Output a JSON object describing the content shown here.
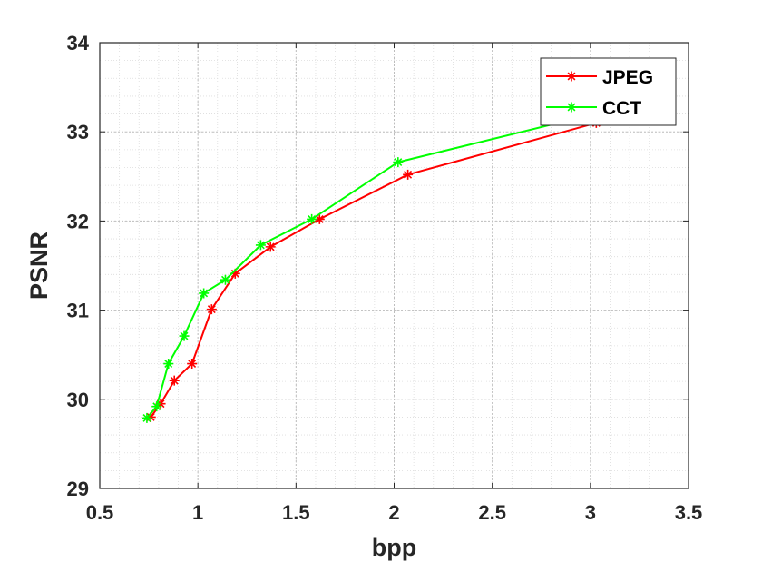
{
  "chart_data": {
    "type": "line",
    "title": "",
    "xlabel": "bpp",
    "ylabel": "PSNR",
    "xlim": [
      0.5,
      3.5
    ],
    "ylim": [
      29,
      34
    ],
    "xticks": [
      "0.5",
      "1",
      "1.5",
      "2",
      "2.5",
      "3",
      "3.5"
    ],
    "yticks": [
      "29",
      "30",
      "31",
      "32",
      "33",
      "34"
    ],
    "grid": "major and minor, dotted",
    "legend_position": "top-right",
    "series": [
      {
        "name": "JPEG",
        "color": "#ff0000",
        "marker": "asterisk",
        "x": [
          0.76,
          0.81,
          0.88,
          0.97,
          1.07,
          1.19,
          1.37,
          1.62,
          2.07,
          3.03
        ],
        "y": [
          29.8,
          29.95,
          30.21,
          30.4,
          31.01,
          31.41,
          31.71,
          32.02,
          32.52,
          33.1
        ]
      },
      {
        "name": "CCT",
        "color": "#00ff00",
        "marker": "asterisk",
        "x": [
          0.74,
          0.79,
          0.85,
          0.93,
          1.03,
          1.14,
          1.32,
          1.58,
          2.02,
          3.06
        ],
        "y": [
          29.79,
          29.92,
          30.4,
          30.71,
          31.19,
          31.34,
          31.73,
          32.02,
          32.66,
          33.22
        ]
      }
    ]
  }
}
